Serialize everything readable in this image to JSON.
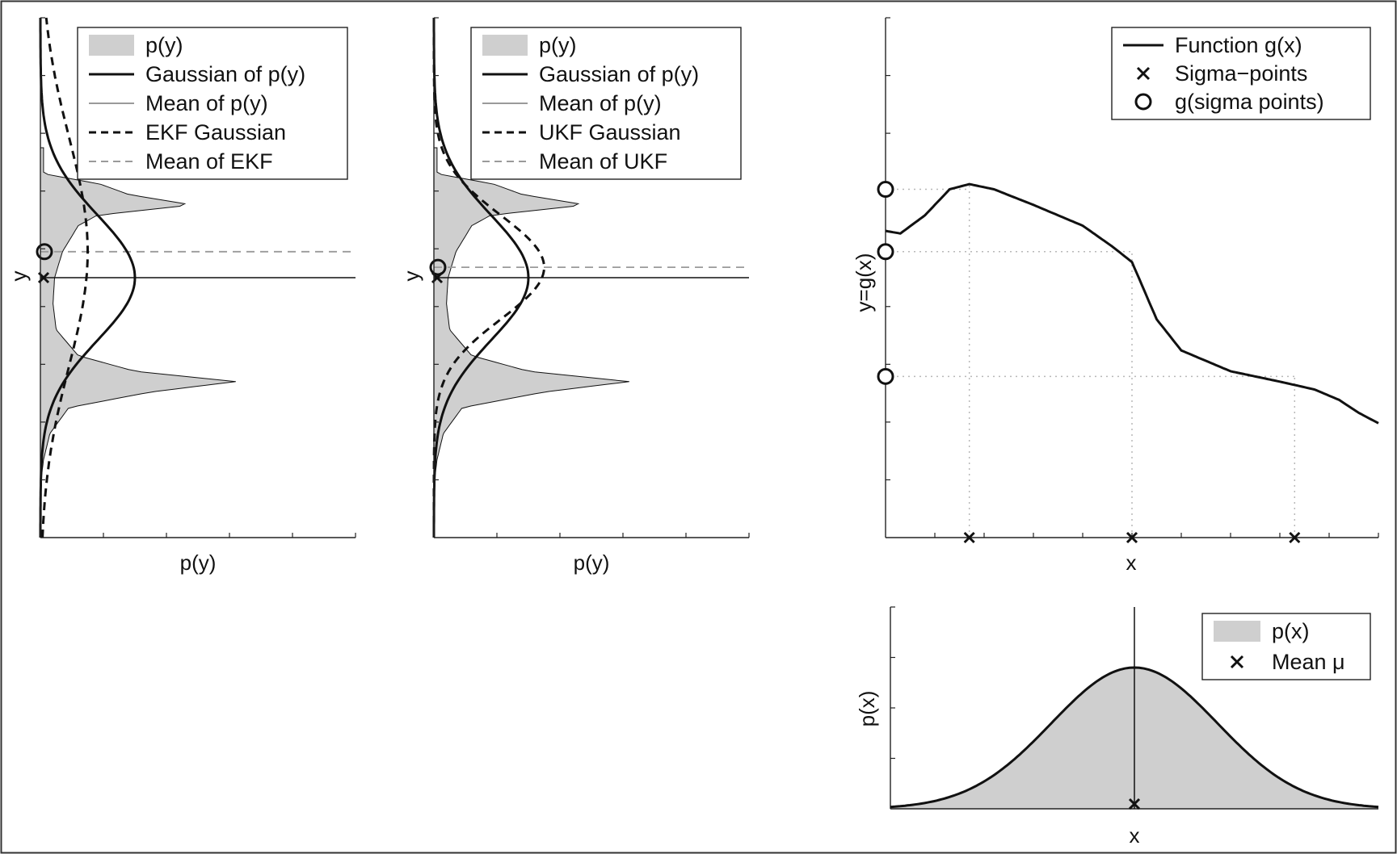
{
  "colors": {
    "shade": "#cfcfcf",
    "curve": "#111111",
    "mean_gray": "#9a9a9a",
    "dotted_grid": "#b8b8b8",
    "frame": "#333333"
  },
  "chart_data": [
    {
      "id": "ekf",
      "type": "line",
      "title": "",
      "xlabel": "p(y)",
      "ylabel": "y",
      "orientation": "density-on-x, y-vertical",
      "xlim": [
        0,
        1
      ],
      "ylim": [
        0,
        1
      ],
      "grid": false,
      "legend_position": "top-right",
      "legend": [
        {
          "label": "p(y)",
          "style": "gray-fill"
        },
        {
          "label": "Gaussian of p(y)",
          "style": "solid-thick"
        },
        {
          "label": "Mean of p(y)",
          "style": "solid-gray"
        },
        {
          "label": "EKF Gaussian",
          "style": "dashed-thick"
        },
        {
          "label": "Mean of EKF",
          "style": "dashed-gray"
        }
      ],
      "density_py": {
        "y": [
          0.0,
          0.05,
          0.1,
          0.15,
          0.2,
          0.25,
          0.28,
          0.3,
          0.32,
          0.35,
          0.4,
          0.45,
          0.5,
          0.55,
          0.6,
          0.62,
          0.64,
          0.66,
          0.68,
          0.7
        ],
        "value": [
          0.0,
          0.0,
          0.0,
          0.01,
          0.03,
          0.09,
          0.35,
          0.62,
          0.3,
          0.12,
          0.05,
          0.04,
          0.045,
          0.07,
          0.12,
          0.18,
          0.48,
          0.28,
          0.19,
          0.01
        ]
      },
      "gaussian_of_py": {
        "mean": 0.5,
        "std": 0.12,
        "peak": 0.3
      },
      "ekf_gaussian": {
        "mean": 0.55,
        "std": 0.22,
        "peak": 0.15
      },
      "mean_of_py": 0.5,
      "mean_of_ekf": 0.55,
      "markers": [
        {
          "kind": "x",
          "label": "sigma-point mean",
          "y": 0.5
        },
        {
          "kind": "o",
          "label": "transformed point",
          "y": 0.55
        }
      ]
    },
    {
      "id": "ukf",
      "type": "line",
      "title": "",
      "xlabel": "p(y)",
      "ylabel": "y",
      "orientation": "density-on-x, y-vertical",
      "xlim": [
        0,
        1
      ],
      "ylim": [
        0,
        1
      ],
      "grid": false,
      "legend_position": "top-right",
      "legend": [
        {
          "label": "p(y)",
          "style": "gray-fill"
        },
        {
          "label": "Gaussian of p(y)",
          "style": "solid-thick"
        },
        {
          "label": "Mean of p(y)",
          "style": "solid-gray"
        },
        {
          "label": "UKF Gaussian",
          "style": "dashed-thick"
        },
        {
          "label": "Mean of UKF",
          "style": "dashed-gray"
        }
      ],
      "density_py": {
        "y": [
          0.0,
          0.05,
          0.1,
          0.15,
          0.2,
          0.25,
          0.28,
          0.3,
          0.32,
          0.35,
          0.4,
          0.45,
          0.5,
          0.55,
          0.6,
          0.62,
          0.64,
          0.66,
          0.68,
          0.7
        ],
        "value": [
          0.0,
          0.0,
          0.0,
          0.01,
          0.03,
          0.09,
          0.35,
          0.62,
          0.3,
          0.12,
          0.05,
          0.04,
          0.045,
          0.07,
          0.12,
          0.18,
          0.48,
          0.28,
          0.19,
          0.01
        ]
      },
      "gaussian_of_py": {
        "mean": 0.5,
        "std": 0.12,
        "peak": 0.3
      },
      "ukf_gaussian": {
        "mean": 0.52,
        "std": 0.1,
        "peak": 0.35
      },
      "mean_of_py": 0.5,
      "mean_of_ukf": 0.52,
      "markers": [
        {
          "kind": "x",
          "label": "sigma-point mean",
          "y": 0.5
        },
        {
          "kind": "o",
          "label": "transformed point",
          "y": 0.52
        }
      ]
    },
    {
      "id": "gx",
      "type": "line",
      "title": "",
      "xlabel": "x",
      "ylabel": "y=g(x)",
      "xlim": [
        0,
        1
      ],
      "ylim": [
        0,
        1
      ],
      "grid": false,
      "legend_position": "top-right",
      "legend": [
        {
          "label": "Function g(x)",
          "style": "solid-thick"
        },
        {
          "label": "Sigma−points",
          "style": "x-marker"
        },
        {
          "label": "g(sigma points)",
          "style": "o-marker"
        }
      ],
      "function_g": {
        "x": [
          0.0,
          0.03,
          0.08,
          0.13,
          0.17,
          0.22,
          0.3,
          0.4,
          0.46,
          0.5,
          0.55,
          0.6,
          0.65,
          0.7,
          0.8,
          0.87,
          0.92,
          0.96,
          1.0
        ],
        "y": [
          0.59,
          0.585,
          0.62,
          0.67,
          0.68,
          0.67,
          0.64,
          0.6,
          0.56,
          0.53,
          0.42,
          0.36,
          0.34,
          0.32,
          0.3,
          0.285,
          0.265,
          0.24,
          0.22
        ]
      },
      "sigma_points_x": [
        0.17,
        0.5,
        0.83
      ],
      "g_sigma_points_y": [
        0.67,
        0.55,
        0.31
      ]
    },
    {
      "id": "px",
      "type": "area",
      "title": "",
      "xlabel": "x",
      "ylabel": "p(x)",
      "xlim": [
        0,
        1
      ],
      "ylim": [
        0,
        1
      ],
      "grid": false,
      "legend_position": "top-right",
      "legend": [
        {
          "label": "p(x)",
          "style": "gray-fill"
        },
        {
          "label": "Mean μ",
          "style": "x-marker"
        }
      ],
      "gaussian_px": {
        "mean": 0.5,
        "std": 0.17,
        "peak": 0.7
      },
      "mean_mu_x": 0.5
    }
  ]
}
